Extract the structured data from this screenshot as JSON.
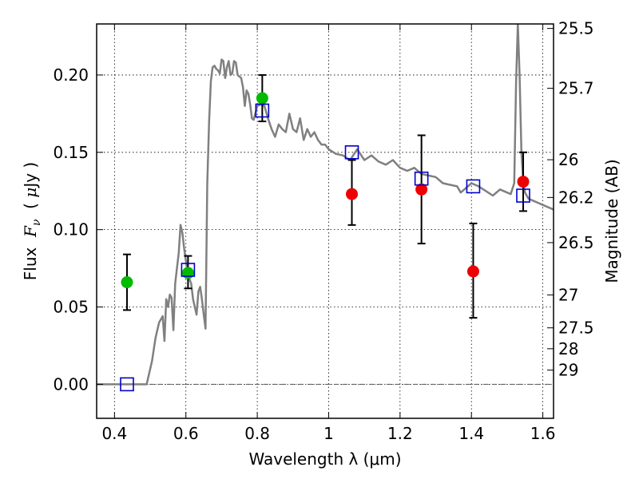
{
  "chart_data": {
    "type": "scatter",
    "title": "",
    "xlabel": "Wavelength  λ (μm)",
    "ylabel_left": "Flux  F_ν  ( μJy )",
    "ylabel_right": "Magnitude (AB)",
    "xlim": [
      0.35,
      1.63
    ],
    "ylim": [
      -0.022,
      0.233
    ],
    "grid": true,
    "x_ticks": [
      0.4,
      0.6,
      0.8,
      1.0,
      1.2,
      1.4,
      1.6
    ],
    "x_tick_labels": [
      "0.4",
      "0.6",
      "0.8",
      "1",
      "1.2",
      "1.4",
      "1.6"
    ],
    "y_ticks": [
      0.0,
      0.05,
      0.1,
      0.15,
      0.2
    ],
    "y_tick_labels": [
      "0.00",
      "0.05",
      "0.10",
      "0.15",
      "0.20"
    ],
    "right_ticks": [
      {
        "label": "25.5",
        "flux": 0.2301
      },
      {
        "label": "25.7",
        "flux": 0.1914
      },
      {
        "label": "26",
        "flux": 0.1452
      },
      {
        "label": "26.2",
        "flux": 0.1208
      },
      {
        "label": "26.5",
        "flux": 0.0916
      },
      {
        "label": "27",
        "flux": 0.0578
      },
      {
        "label": "27.5",
        "flux": 0.0365
      },
      {
        "label": "28",
        "flux": 0.023
      },
      {
        "label": "29",
        "flux": 0.0092
      }
    ],
    "series": [
      {
        "name": "",
        "marker": "circle",
        "color": "#00bb00",
        "points": [
          {
            "x": 0.435,
            "y": 0.066,
            "err_low": 0.048,
            "err_high": 0.084
          },
          {
            "x": 0.606,
            "y": 0.072,
            "err_low": 0.062,
            "err_high": 0.083
          },
          {
            "x": 0.814,
            "y": 0.185,
            "err_low": 0.17,
            "err_high": 0.2
          }
        ]
      },
      {
        "name": "",
        "marker": "circle",
        "color": "#ee0000",
        "points": [
          {
            "x": 1.065,
            "y": 0.123,
            "err_low": 0.103,
            "err_high": 0.145
          },
          {
            "x": 1.26,
            "y": 0.126,
            "err_low": 0.091,
            "err_high": 0.161
          },
          {
            "x": 1.405,
            "y": 0.073,
            "err_low": 0.043,
            "err_high": 0.104
          },
          {
            "x": 1.545,
            "y": 0.131,
            "err_low": 0.112,
            "err_high": 0.15
          }
        ]
      },
      {
        "name": "",
        "marker": "square",
        "color": "#0000cc",
        "points": [
          {
            "x": 0.435,
            "y": 0.0
          },
          {
            "x": 0.606,
            "y": 0.074
          },
          {
            "x": 0.814,
            "y": 0.177
          },
          {
            "x": 1.065,
            "y": 0.15
          },
          {
            "x": 1.26,
            "y": 0.133
          },
          {
            "x": 1.405,
            "y": 0.128
          },
          {
            "x": 1.545,
            "y": 0.122
          }
        ]
      }
    ],
    "model_spectrum": {
      "color": "#808080",
      "x": [
        0.35,
        0.49,
        0.505,
        0.515,
        0.525,
        0.535,
        0.54,
        0.545,
        0.55,
        0.555,
        0.56,
        0.565,
        0.57,
        0.575,
        0.58,
        0.585,
        0.59,
        0.595,
        0.6,
        0.605,
        0.61,
        0.615,
        0.62,
        0.625,
        0.63,
        0.635,
        0.64,
        0.645,
        0.65,
        0.655,
        0.66,
        0.665,
        0.67,
        0.675,
        0.68,
        0.685,
        0.69,
        0.695,
        0.7,
        0.705,
        0.71,
        0.715,
        0.72,
        0.725,
        0.73,
        0.735,
        0.74,
        0.745,
        0.75,
        0.755,
        0.76,
        0.765,
        0.77,
        0.775,
        0.78,
        0.785,
        0.79,
        0.8,
        0.81,
        0.82,
        0.83,
        0.84,
        0.85,
        0.86,
        0.87,
        0.88,
        0.89,
        0.9,
        0.91,
        0.92,
        0.93,
        0.94,
        0.95,
        0.96,
        0.97,
        0.98,
        0.99,
        1.0,
        1.02,
        1.04,
        1.06,
        1.08,
        1.1,
        1.12,
        1.14,
        1.16,
        1.18,
        1.2,
        1.22,
        1.24,
        1.26,
        1.28,
        1.3,
        1.32,
        1.34,
        1.36,
        1.37,
        1.38,
        1.4,
        1.42,
        1.44,
        1.46,
        1.48,
        1.5,
        1.51,
        1.52,
        1.525,
        1.53,
        1.535,
        1.54,
        1.545,
        1.55,
        1.56,
        1.58,
        1.6,
        1.63
      ],
      "y": [
        0.0,
        0.0,
        0.015,
        0.03,
        0.04,
        0.044,
        0.028,
        0.055,
        0.05,
        0.058,
        0.056,
        0.035,
        0.065,
        0.075,
        0.085,
        0.103,
        0.098,
        0.088,
        0.08,
        0.072,
        0.068,
        0.065,
        0.055,
        0.05,
        0.045,
        0.06,
        0.063,
        0.055,
        0.045,
        0.036,
        0.13,
        0.17,
        0.196,
        0.205,
        0.206,
        0.204,
        0.203,
        0.201,
        0.21,
        0.209,
        0.198,
        0.205,
        0.209,
        0.2,
        0.201,
        0.209,
        0.208,
        0.2,
        0.199,
        0.198,
        0.192,
        0.18,
        0.19,
        0.188,
        0.181,
        0.172,
        0.171,
        0.18,
        0.181,
        0.18,
        0.172,
        0.165,
        0.16,
        0.168,
        0.165,
        0.163,
        0.175,
        0.165,
        0.163,
        0.172,
        0.158,
        0.165,
        0.16,
        0.163,
        0.158,
        0.155,
        0.155,
        0.152,
        0.149,
        0.148,
        0.145,
        0.152,
        0.145,
        0.148,
        0.144,
        0.142,
        0.145,
        0.14,
        0.138,
        0.14,
        0.136,
        0.135,
        0.134,
        0.13,
        0.129,
        0.128,
        0.124,
        0.126,
        0.13,
        0.128,
        0.125,
        0.122,
        0.126,
        0.124,
        0.123,
        0.13,
        0.195,
        0.233,
        0.2,
        0.15,
        0.131,
        0.124,
        0.12,
        0.118,
        0.116,
        0.113
      ]
    }
  }
}
